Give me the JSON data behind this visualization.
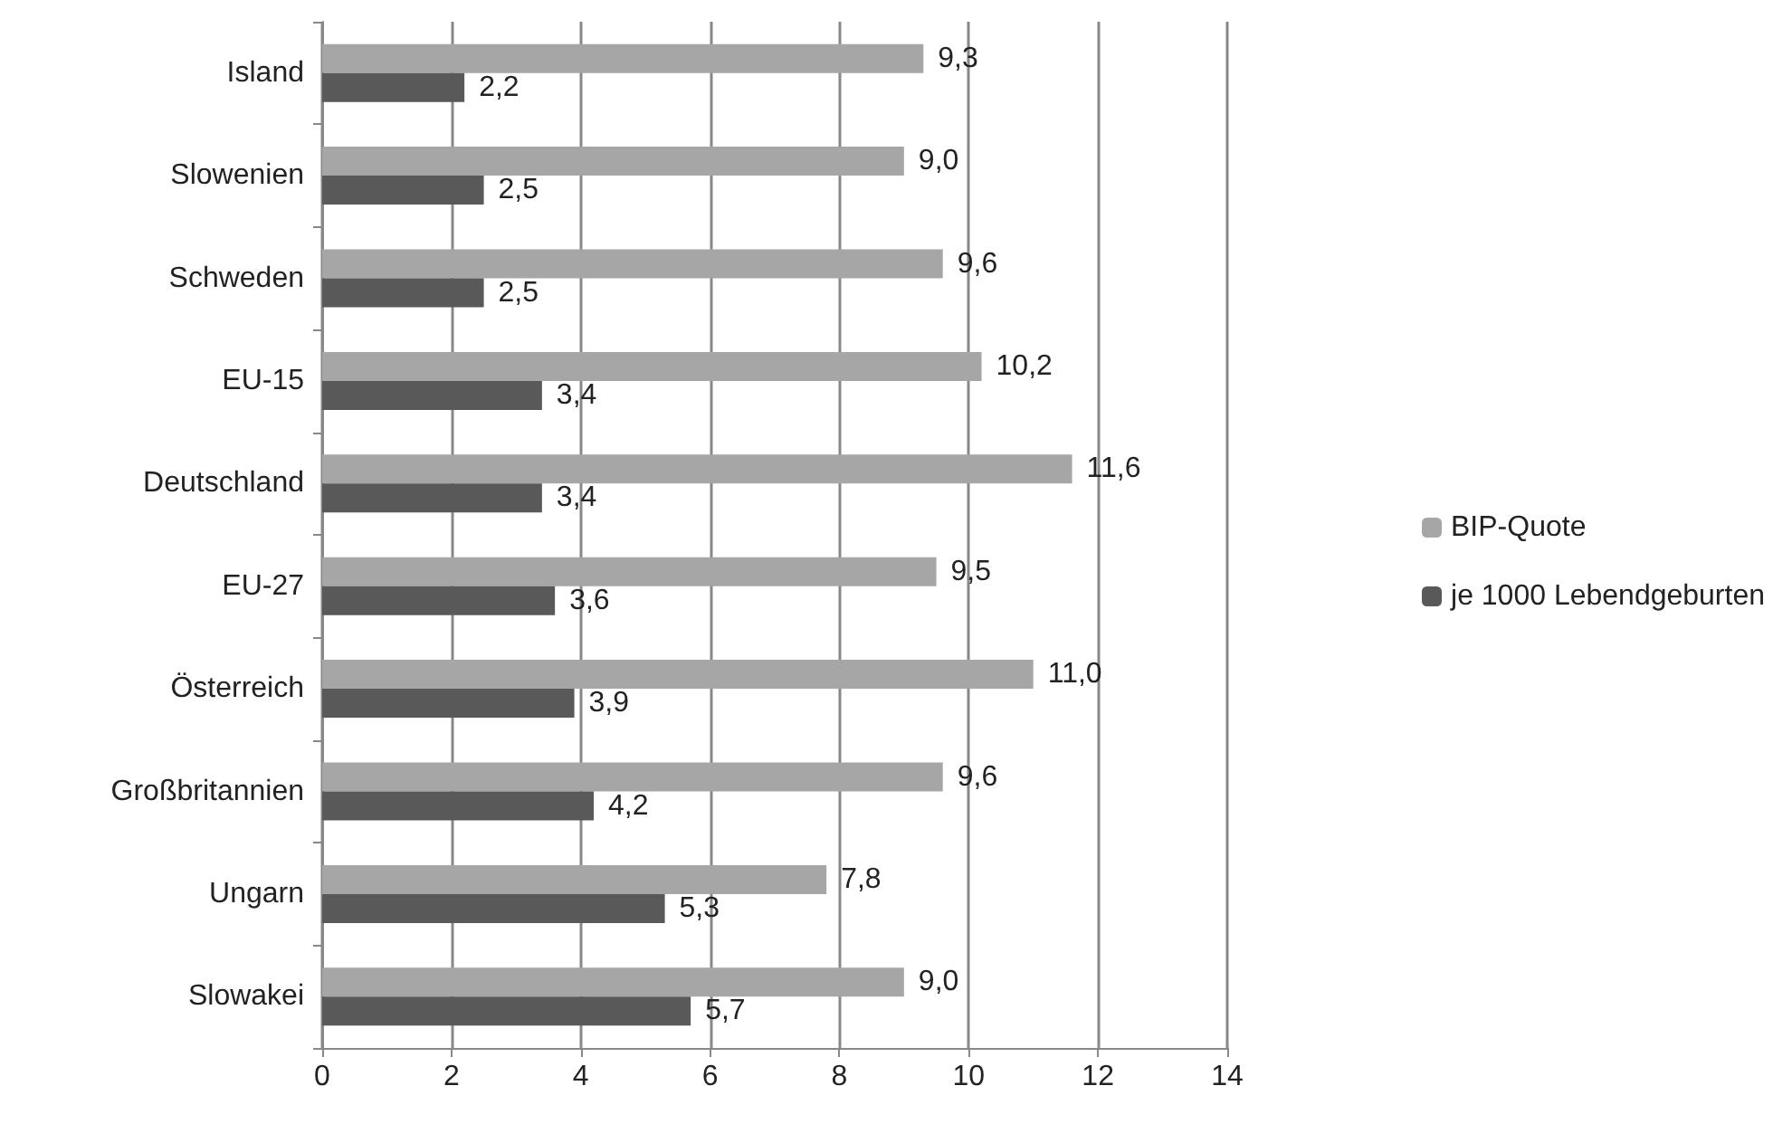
{
  "chart_data": {
    "type": "bar",
    "orientation": "horizontal",
    "categories": [
      "Island",
      "Slowenien",
      "Schweden",
      "EU-15",
      "Deutschland",
      "EU-27",
      "Österreich",
      "Großbritannien",
      "Ungarn",
      "Slowakei"
    ],
    "series": [
      {
        "name": "BIP-Quote",
        "color": "#a6a6a6",
        "values": [
          9.3,
          9.0,
          9.6,
          10.2,
          11.6,
          9.5,
          11.0,
          9.6,
          7.8,
          9.0
        ],
        "value_labels": [
          "9,3",
          "9,0",
          "9,6",
          "10,2",
          "11,6",
          "9,5",
          "11,0",
          "9,6",
          "7,8",
          "9,0"
        ]
      },
      {
        "name": "je 1000 Lebendgeburten",
        "color": "#595959",
        "values": [
          2.2,
          2.5,
          2.5,
          3.4,
          3.4,
          3.6,
          3.9,
          4.2,
          5.3,
          5.7
        ],
        "value_labels": [
          "2,2",
          "2,5",
          "2,5",
          "3,4",
          "3,4",
          "3,6",
          "3,9",
          "4,2",
          "5,3",
          "5,7"
        ]
      }
    ],
    "xlim": [
      0,
      14
    ],
    "xticks": [
      0,
      2,
      4,
      6,
      8,
      10,
      12,
      14
    ],
    "grid": "x",
    "legend": "right"
  }
}
